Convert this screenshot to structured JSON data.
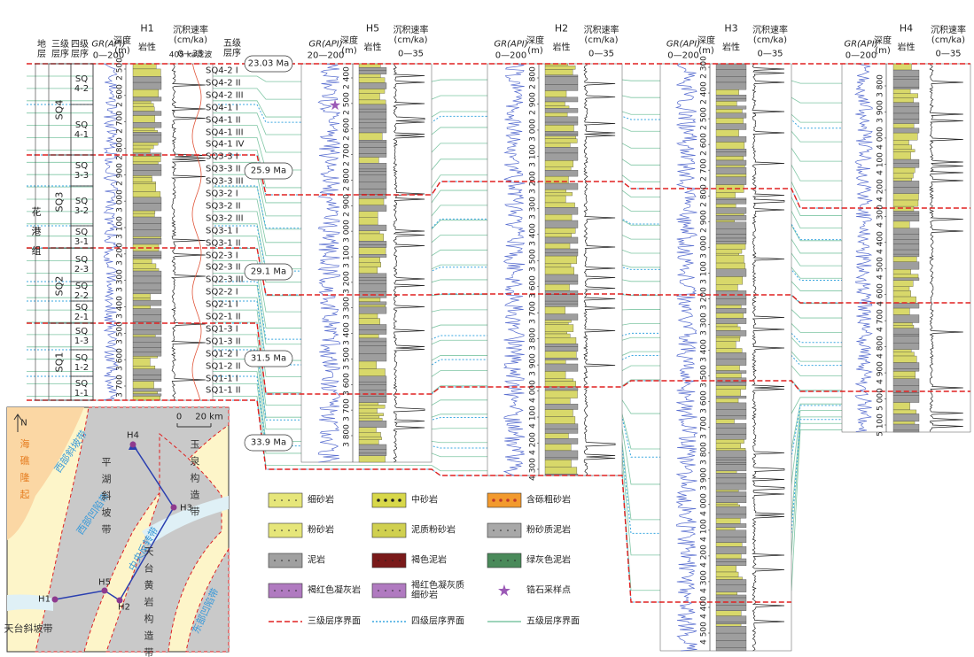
{
  "h1_header": {
    "strata": "地层",
    "third": "三级层序",
    "fourth": "四级层序",
    "rate_filter": "405 ka滤波",
    "fifth": "五级层序"
  },
  "formation": "花港组",
  "third_order": [
    "SQ4",
    "SQ3",
    "SQ2",
    "SQ1"
  ],
  "fourth_order": [
    "SQ 4-2",
    "SQ 4-1",
    "SQ 3-3",
    "SQ 3-2",
    "SQ 3-1",
    "SQ 2-3",
    "SQ 2-2",
    "SQ 2-1",
    "SQ 1-3",
    "SQ 1-2",
    "SQ 1-1"
  ],
  "fifth_order": [
    "SQ4-2 I",
    "SQ4-2 II",
    "SQ4-2 III",
    "SQ4-1 I",
    "SQ4-1 II",
    "SQ4-1 III",
    "SQ4-1 IV",
    "SQ3-3 I",
    "SQ3-3 II",
    "SQ3-3 III",
    "SQ3-2 I",
    "SQ3-2 II",
    "SQ3-2 III",
    "SQ3-1 I",
    "SQ3-1 II",
    "SQ2-3 I",
    "SQ2-3 II",
    "SQ2-3 III",
    "SQ2-2 I",
    "SQ2-1 I",
    "SQ2-1 II",
    "SQ1-3 I",
    "SQ1-3 II",
    "SQ1-2 I",
    "SQ1-2 II",
    "SQ1-1 I",
    "SQ1-1 II"
  ],
  "ages": [
    "23.03 Ma",
    "25.9 Ma",
    "29.1 Ma",
    "31.5 Ma",
    "33.9 Ma"
  ],
  "wells": [
    {
      "name": "H1",
      "gr": "GR(API)",
      "gr_scale": "0—200",
      "depth": "深度(m)",
      "lithology": "岩性",
      "rate": "沉积速率(cm/ka)",
      "rate_scale": "0—35",
      "depth_ticks": [
        "2 500",
        "2 600",
        "2 700",
        "2 800",
        "2 900",
        "3 000",
        "3 100",
        "3 200",
        "3 300",
        "3 400",
        "3 500",
        "3 600",
        "3 700"
      ]
    },
    {
      "name": "H5",
      "gr": "GR(API)",
      "gr_scale": "20—200",
      "depth": "深度(m)",
      "lithology": "岩性",
      "rate": "沉积速率(cm/ka)",
      "rate_scale": "0—35",
      "depth_ticks": [
        "2 400",
        "2 500",
        "2 600",
        "2 700",
        "2 800",
        "2 900",
        "3 000",
        "3 100",
        "3 200",
        "3 300",
        "3 400",
        "3 500",
        "3 600",
        "3 700",
        "3 800"
      ]
    },
    {
      "name": "H2",
      "gr": "GR(API)",
      "gr_scale": "0—200",
      "depth": "深度(m)",
      "lithology": "岩性",
      "rate": "沉积速率(cm/ka)",
      "rate_scale": "0—35",
      "depth_ticks": [
        "2 800",
        "2 900",
        "3 000",
        "3 100",
        "3 200",
        "3 300",
        "3 400",
        "3 500",
        "3 600",
        "3 700",
        "3 800",
        "3 900",
        "4 000",
        "4 100",
        "4 200",
        "4 300"
      ]
    },
    {
      "name": "H3",
      "gr": "GR(API)",
      "gr_scale": "0—200",
      "depth": "深度(m)",
      "lithology": "岩性",
      "rate": "沉积速率(cm/ka)",
      "rate_scale": "0—35",
      "depth_ticks": [
        "2 300",
        "2 400",
        "2 500",
        "2 600",
        "2 700",
        "2 800",
        "2 900",
        "3 000",
        "3 100",
        "3 200",
        "3 300",
        "3 400",
        "3 500",
        "3 600",
        "3 700",
        "3 800",
        "3 900",
        "4 000",
        "4 100",
        "4 200",
        "4 300",
        "4 400",
        "4 500"
      ]
    },
    {
      "name": "H4",
      "gr": "GR(API)",
      "gr_scale": "0—200",
      "depth": "深度(m)",
      "lithology": "岩性",
      "rate": "沉积速率(cm/ka)",
      "rate_scale": "0—35",
      "depth_ticks": [
        "3 800",
        "3 900",
        "4 000",
        "4 100",
        "4 200",
        "4 300",
        "4 400",
        "4 500",
        "4 600",
        "4 700",
        "4 800",
        "4 900",
        "5 000",
        "5 100"
      ]
    }
  ],
  "legend": [
    "细砂岩",
    "中砂岩",
    "含砾粗砂岩",
    "粉砂岩",
    "泥质粉砂岩",
    "粉砂质泥岩",
    "泥岩",
    "褐色泥岩",
    "绿灰色泥岩",
    "褐红色凝灰岩",
    "褐红色凝灰质细砂岩",
    "锆石采样点",
    "三级层序界面",
    "四级层序界面",
    "五级层序界面"
  ],
  "map": {
    "labels": [
      "海礁隆起",
      "西部斜坡带",
      "西部凹陷带",
      "平湖斜坡带",
      "中央反转带",
      "天台黄岩构造带",
      "玉泉构造带",
      "东部凹陷带",
      "天台斜坡带"
    ],
    "scale_zero": "0",
    "scale_km": "20 km",
    "north": "N",
    "wells": [
      "H1",
      "H5",
      "H2",
      "H3",
      "H4"
    ]
  }
}
